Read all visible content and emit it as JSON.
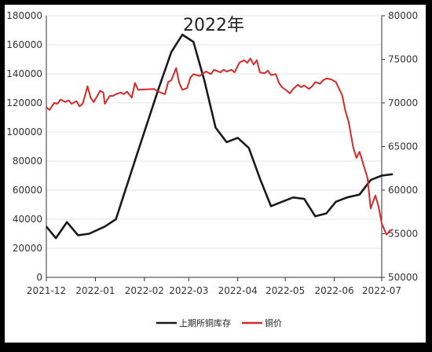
{
  "chart_data": {
    "type": "line",
    "title": "2022年",
    "xlabel": "",
    "ylabel_left": "",
    "ylabel_right": "",
    "x_ticks": [
      "2021-12",
      "2022-01",
      "2022-02",
      "2022-03",
      "2022-04",
      "2022-05",
      "2022-06",
      "2022-07"
    ],
    "ylim_left": [
      0,
      180000
    ],
    "yticks_left": [
      0,
      20000,
      40000,
      60000,
      80000,
      100000,
      120000,
      140000,
      160000,
      180000
    ],
    "ylim_right": [
      50000,
      80000
    ],
    "yticks_right": [
      50000,
      55000,
      60000,
      65000,
      70000,
      75000,
      80000
    ],
    "grid": true,
    "legend_position": "bottom-center",
    "series": [
      {
        "name": "上期所铜库存",
        "axis": "left",
        "color": "#1a1a1a",
        "points": [
          [
            "2021-12-01",
            35000
          ],
          [
            "2021-12-07",
            27000
          ],
          [
            "2021-12-14",
            38000
          ],
          [
            "2021-12-21",
            29000
          ],
          [
            "2021-12-28",
            30000
          ],
          [
            "2022-01-07",
            35000
          ],
          [
            "2022-01-14",
            40000
          ],
          [
            "2022-01-28",
            87000
          ],
          [
            "2022-02-10",
            130000
          ],
          [
            "2022-02-18",
            155000
          ],
          [
            "2022-02-25",
            167000
          ],
          [
            "2022-03-04",
            162000
          ],
          [
            "2022-03-11",
            135000
          ],
          [
            "2022-03-18",
            103000
          ],
          [
            "2022-03-25",
            93000
          ],
          [
            "2022-04-01",
            96000
          ],
          [
            "2022-04-08",
            89000
          ],
          [
            "2022-04-15",
            68000
          ],
          [
            "2022-04-22",
            49000
          ],
          [
            "2022-04-29",
            52000
          ],
          [
            "2022-05-06",
            55000
          ],
          [
            "2022-05-13",
            54000
          ],
          [
            "2022-05-20",
            42000
          ],
          [
            "2022-05-27",
            44000
          ],
          [
            "2022-06-02",
            52000
          ],
          [
            "2022-06-09",
            55000
          ],
          [
            "2022-06-17",
            57000
          ],
          [
            "2022-06-24",
            67000
          ],
          [
            "2022-07-01",
            70000
          ],
          [
            "2022-07-08",
            71000
          ]
        ]
      },
      {
        "name": "铜价",
        "axis": "right",
        "color": "#d42a2a",
        "points": [
          [
            "2021-12-01",
            69500
          ],
          [
            "2021-12-03",
            69200
          ],
          [
            "2021-12-06",
            70000
          ],
          [
            "2021-12-08",
            69900
          ],
          [
            "2021-12-10",
            70400
          ],
          [
            "2021-12-13",
            70100
          ],
          [
            "2021-12-15",
            70300
          ],
          [
            "2021-12-17",
            69900
          ],
          [
            "2021-12-20",
            70200
          ],
          [
            "2021-12-22",
            69600
          ],
          [
            "2021-12-24",
            69900
          ],
          [
            "2021-12-27",
            71900
          ],
          [
            "2021-12-29",
            70600
          ],
          [
            "2021-12-31",
            70100
          ],
          [
            "2022-01-04",
            71400
          ],
          [
            "2022-01-06",
            71200
          ],
          [
            "2022-01-07",
            69900
          ],
          [
            "2022-01-10",
            70800
          ],
          [
            "2022-01-12",
            70800
          ],
          [
            "2022-01-14",
            71000
          ],
          [
            "2022-01-17",
            71200
          ],
          [
            "2022-01-19",
            71000
          ],
          [
            "2022-01-21",
            71300
          ],
          [
            "2022-01-24",
            70600
          ],
          [
            "2022-01-26",
            72300
          ],
          [
            "2022-01-28",
            71500
          ],
          [
            "2022-02-07",
            71600
          ],
          [
            "2022-02-09",
            71400
          ],
          [
            "2022-02-11",
            71200
          ],
          [
            "2022-02-14",
            71000
          ],
          [
            "2022-02-16",
            72400
          ],
          [
            "2022-02-18",
            72600
          ],
          [
            "2022-02-21",
            74000
          ],
          [
            "2022-02-23",
            72300
          ],
          [
            "2022-02-25",
            71500
          ],
          [
            "2022-02-28",
            71700
          ],
          [
            "2022-03-02",
            72900
          ],
          [
            "2022-03-04",
            73300
          ],
          [
            "2022-03-08",
            73100
          ],
          [
            "2022-03-10",
            73400
          ],
          [
            "2022-03-12",
            73600
          ],
          [
            "2022-03-15",
            73300
          ],
          [
            "2022-03-17",
            73800
          ],
          [
            "2022-03-21",
            73500
          ],
          [
            "2022-03-23",
            73800
          ],
          [
            "2022-03-25",
            73600
          ],
          [
            "2022-03-28",
            73800
          ],
          [
            "2022-03-30",
            73500
          ],
          [
            "2022-04-02",
            74600
          ],
          [
            "2022-04-05",
            74900
          ],
          [
            "2022-04-07",
            74600
          ],
          [
            "2022-04-09",
            75100
          ],
          [
            "2022-04-11",
            74400
          ],
          [
            "2022-04-13",
            74900
          ],
          [
            "2022-04-15",
            73500
          ],
          [
            "2022-04-18",
            73400
          ],
          [
            "2022-04-20",
            73700
          ],
          [
            "2022-04-22",
            73200
          ],
          [
            "2022-04-25",
            73300
          ],
          [
            "2022-04-27",
            72300
          ],
          [
            "2022-04-29",
            71800
          ],
          [
            "2022-05-02",
            71400
          ],
          [
            "2022-05-04",
            71100
          ],
          [
            "2022-05-06",
            71600
          ],
          [
            "2022-05-09",
            72100
          ],
          [
            "2022-05-11",
            71800
          ],
          [
            "2022-05-13",
            72000
          ],
          [
            "2022-05-16",
            71600
          ],
          [
            "2022-05-18",
            71900
          ],
          [
            "2022-05-20",
            72400
          ],
          [
            "2022-05-23",
            72200
          ],
          [
            "2022-05-25",
            72600
          ],
          [
            "2022-05-27",
            72800
          ],
          [
            "2022-05-30",
            72700
          ],
          [
            "2022-06-02",
            72400
          ],
          [
            "2022-06-06",
            70900
          ],
          [
            "2022-06-08",
            69100
          ],
          [
            "2022-06-10",
            67900
          ],
          [
            "2022-06-13",
            64900
          ],
          [
            "2022-06-15",
            63700
          ],
          [
            "2022-06-17",
            64400
          ],
          [
            "2022-06-20",
            62600
          ],
          [
            "2022-06-22",
            61400
          ],
          [
            "2022-06-24",
            57900
          ],
          [
            "2022-06-27",
            59400
          ],
          [
            "2022-06-29",
            58100
          ],
          [
            "2022-07-01",
            56200
          ],
          [
            "2022-07-04",
            54900
          ],
          [
            "2022-07-06",
            55300
          ],
          [
            "2022-07-08",
            55500
          ]
        ]
      }
    ]
  }
}
